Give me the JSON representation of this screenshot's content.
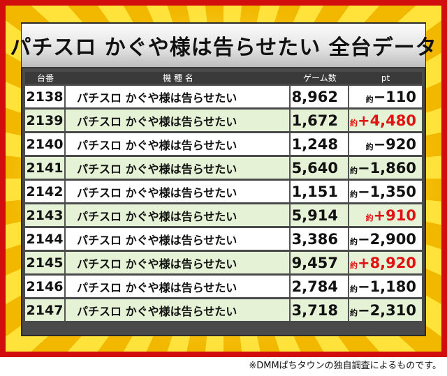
{
  "title": "パチスロ かぐや様は告らせたい 全台データ",
  "headers": {
    "num": "台番",
    "name": "機 種 名",
    "games": "ゲーム数",
    "pt": "pt"
  },
  "rows": [
    {
      "num": "2138",
      "name": "パチスロ かぐや様は告らせたい",
      "games": "8,962",
      "approx": "約",
      "pt": "−110",
      "positive": false
    },
    {
      "num": "2139",
      "name": "パチスロ かぐや様は告らせたい",
      "games": "1,672",
      "approx": "約",
      "pt": "+4,480",
      "positive": true
    },
    {
      "num": "2140",
      "name": "パチスロ かぐや様は告らせたい",
      "games": "1,248",
      "approx": "約",
      "pt": "−920",
      "positive": false
    },
    {
      "num": "2141",
      "name": "パチスロ かぐや様は告らせたい",
      "games": "5,640",
      "approx": "約",
      "pt": "−1,860",
      "positive": false
    },
    {
      "num": "2142",
      "name": "パチスロ かぐや様は告らせたい",
      "games": "1,151",
      "approx": "約",
      "pt": "−1,350",
      "positive": false
    },
    {
      "num": "2143",
      "name": "パチスロ かぐや様は告らせたい",
      "games": "5,914",
      "approx": "約",
      "pt": "+910",
      "positive": true
    },
    {
      "num": "2144",
      "name": "パチスロ かぐや様は告らせたい",
      "games": "3,386",
      "approx": "約",
      "pt": "−2,900",
      "positive": false
    },
    {
      "num": "2145",
      "name": "パチスロ かぐや様は告らせたい",
      "games": "9,457",
      "approx": "約",
      "pt": "+8,920",
      "positive": true
    },
    {
      "num": "2146",
      "name": "パチスロ かぐや様は告らせたい",
      "games": "2,784",
      "approx": "約",
      "pt": "−1,180",
      "positive": false
    },
    {
      "num": "2147",
      "name": "パチスロ かぐや様は告らせたい",
      "games": "3,718",
      "approx": "約",
      "pt": "−2,310",
      "positive": false
    }
  ],
  "footnote": "※DMMぱちタウンの独自調査によるものです。",
  "colors": {
    "frame": "#d20d0d",
    "gold": "#ffe23a",
    "header_bg": "#3a3a3a",
    "alt_row": "#e6f2d6",
    "positive_pt": "#e01212"
  }
}
